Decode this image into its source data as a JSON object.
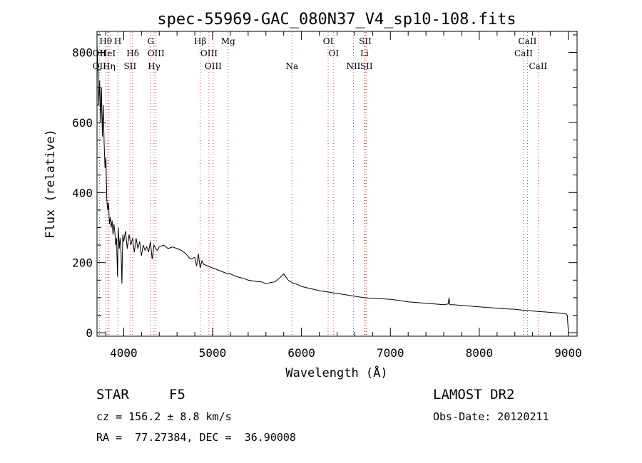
{
  "chart_data": {
    "type": "line",
    "title": "spec-55969-GAC_080N37_V4_sp10-108.fits",
    "xlabel": "Wavelength (Å)",
    "ylabel": "Flux (relative)",
    "xlim": [
      3700,
      9100
    ],
    "ylim": [
      -10,
      860
    ],
    "xticks": [
      4000,
      5000,
      6000,
      7000,
      8000,
      9000
    ],
    "yticks": [
      0,
      200,
      400,
      600,
      800
    ],
    "x_minor_step": 200,
    "y_minor_step": 50,
    "grid": false,
    "series": [
      {
        "x": [
          3700,
          3710,
          3720,
          3730,
          3740,
          3750,
          3760,
          3770,
          3780,
          3790,
          3800,
          3810,
          3820,
          3830,
          3840,
          3850,
          3860,
          3870,
          3880,
          3890,
          3900,
          3910,
          3920,
          3930,
          3940,
          3950,
          3960,
          3970,
          3980,
          3990,
          4000,
          4020,
          4040,
          4060,
          4080,
          4100,
          4120,
          4140,
          4160,
          4180,
          4200,
          4220,
          4240,
          4260,
          4280,
          4300,
          4320,
          4340,
          4360,
          4380,
          4400,
          4450,
          4500,
          4550,
          4600,
          4650,
          4700,
          4750,
          4800,
          4820,
          4840,
          4860,
          4880,
          4900,
          4950,
          5000,
          5050,
          5100,
          5150,
          5200,
          5250,
          5300,
          5350,
          5400,
          5450,
          5500,
          5550,
          5600,
          5650,
          5700,
          5750,
          5800,
          5850,
          5900,
          5950,
          6000,
          6100,
          6200,
          6300,
          6400,
          6500,
          6600,
          6700,
          6800,
          6900,
          7000,
          7100,
          7200,
          7300,
          7400,
          7500,
          7600,
          7650,
          7660,
          7670,
          7700,
          7800,
          7900,
          8000,
          8100,
          8200,
          8300,
          8400,
          8500,
          8600,
          8700,
          8800,
          8900,
          8970,
          8990,
          9000
        ],
        "y": [
          820,
          760,
          650,
          720,
          600,
          700,
          560,
          650,
          540,
          470,
          500,
          380,
          350,
          370,
          310,
          330,
          300,
          320,
          280,
          310,
          290,
          250,
          270,
          160,
          300,
          240,
          270,
          230,
          140,
          280,
          260,
          290,
          240,
          280,
          250,
          270,
          230,
          270,
          240,
          260,
          220,
          250,
          235,
          245,
          230,
          260,
          210,
          250,
          240,
          235,
          245,
          250,
          240,
          245,
          240,
          235,
          225,
          210,
          215,
          190,
          225,
          185,
          205,
          195,
          190,
          185,
          180,
          175,
          170,
          168,
          162,
          158,
          155,
          150,
          148,
          146,
          145,
          140,
          143,
          145,
          155,
          168,
          150,
          142,
          138,
          132,
          126,
          120,
          116,
          112,
          108,
          104,
          100,
          98,
          97,
          95,
          92,
          88,
          86,
          84,
          82,
          80,
          82,
          100,
          80,
          80,
          78,
          76,
          74,
          72,
          70,
          68,
          67,
          64,
          62,
          60,
          58,
          56,
          54,
          50,
          10
        ]
      }
    ],
    "lines": [
      {
        "label": "Hθ",
        "x": 3798,
        "row": 1
      },
      {
        "label": "OII",
        "x": 3727,
        "row": 2
      },
      {
        "label": "OII",
        "x": 3727,
        "row": 3
      },
      {
        "label": "HeI",
        "x": 3820,
        "row": 2
      },
      {
        "label": "Hη",
        "x": 3835,
        "row": 3
      },
      {
        "label": "H",
        "x": 3934,
        "row": 1
      },
      {
        "label": "Hδ",
        "x": 4102,
        "row": 2
      },
      {
        "label": "SII",
        "x": 4072,
        "row": 3
      },
      {
        "label": "G",
        "x": 4305,
        "row": 1
      },
      {
        "label": "OIII",
        "x": 4364,
        "row": 2
      },
      {
        "label": "Hγ",
        "x": 4341,
        "row": 3
      },
      {
        "label": "Hβ",
        "x": 4861,
        "row": 1
      },
      {
        "label": "OIII",
        "x": 4959,
        "row": 2
      },
      {
        "label": "OIII",
        "x": 5007,
        "row": 3
      },
      {
        "label": "Mg",
        "x": 5175,
        "row": 1
      },
      {
        "label": "Na",
        "x": 5893,
        "row": 3
      },
      {
        "label": "OI",
        "x": 6300,
        "row": 1
      },
      {
        "label": "OI",
        "x": 6363,
        "row": 2
      },
      {
        "label": "NII",
        "x": 6584,
        "row": 3
      },
      {
        "label": "SII",
        "x": 6717,
        "row": 1
      },
      {
        "label": "Li",
        "x": 6708,
        "row": 2
      },
      {
        "label": "SII",
        "x": 6731,
        "row": 3
      },
      {
        "label": "CaII",
        "x": 8542,
        "row": 1
      },
      {
        "label": "CaII",
        "x": 8498,
        "row": 2
      },
      {
        "label": "CaII",
        "x": 8662,
        "row": 3
      }
    ]
  },
  "info": {
    "class": "STAR",
    "subclass": "F5",
    "survey": "LAMOST DR2",
    "cz": "cz = 156.2 ± 8.8 km/s",
    "obs_date": "Obs-Date: 20120211",
    "coords": "RA =  77.27384, DEC =  36.90008"
  },
  "colors": {
    "line": "#000000",
    "marker_lines": "#d04040",
    "axes": "#000000",
    "background": "#ffffff"
  }
}
